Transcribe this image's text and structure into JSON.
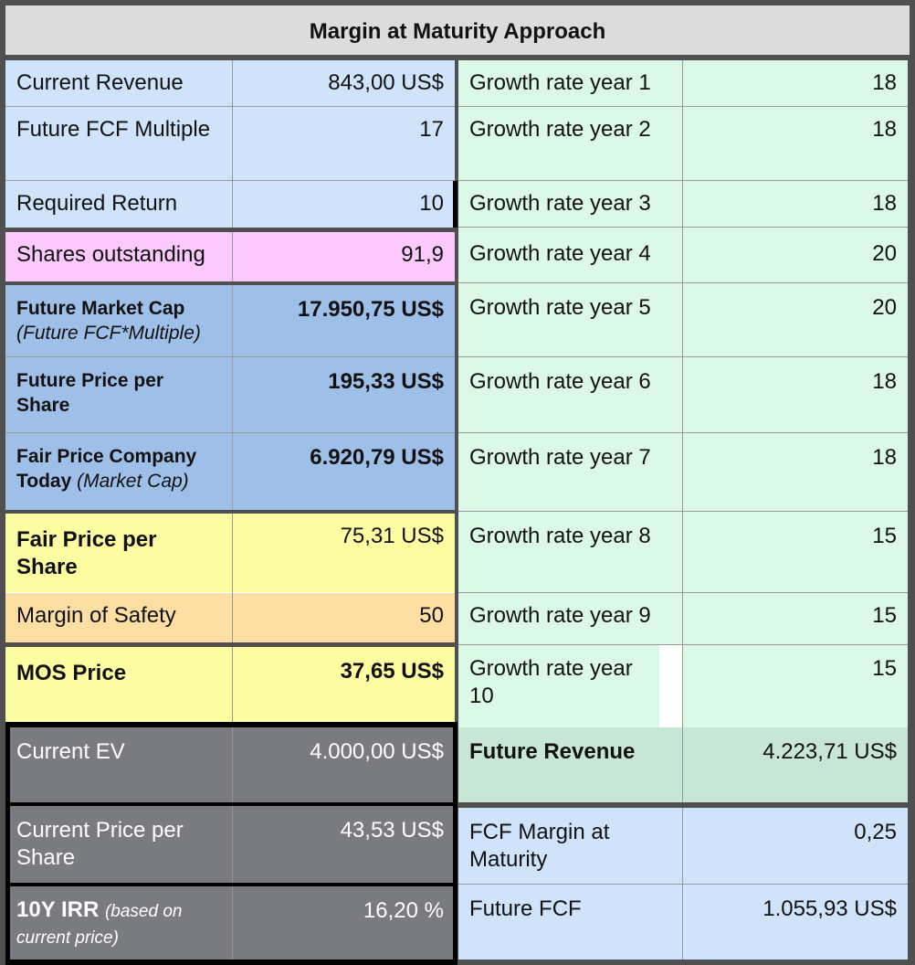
{
  "title": "Margin at Maturity Approach",
  "left": [
    {
      "label": "Current Revenue",
      "value": "843,00 US$"
    },
    {
      "label": "Future FCF Multiple",
      "value": "17"
    },
    {
      "label": "Required Return",
      "value": "10"
    },
    {
      "label": "Shares outstanding",
      "value": "91,9"
    },
    {
      "label": "Future Market Cap",
      "note": "(Future FCF*Multiple)",
      "value": "17.950,75 US$"
    },
    {
      "label": "Future Price per Share",
      "value": "195,33 US$"
    },
    {
      "label": "Fair Price Company Today",
      "note": "(Market Cap)",
      "value": "6.920,79 US$"
    },
    {
      "label": "Fair Price per Share",
      "value": "75,31 US$"
    },
    {
      "label": "Margin of Safety",
      "value": "50"
    },
    {
      "label": "MOS Price",
      "value": "37,65 US$"
    },
    {
      "label": "Current EV",
      "value": "4.000,00 US$"
    },
    {
      "label": "Current Price per Share",
      "value": "43,53 US$"
    },
    {
      "label": "10Y IRR",
      "note": "(based on current price)",
      "value": "16,20 %"
    }
  ],
  "right": [
    {
      "label": "Growth rate year 1",
      "value": "18"
    },
    {
      "label": "Growth rate year 2",
      "value": "18"
    },
    {
      "label": "Growth rate year 3",
      "value": "18"
    },
    {
      "label": "Growth rate year 4",
      "value": "20"
    },
    {
      "label": "Growth rate year 5",
      "value": "20"
    },
    {
      "label": "Growth rate year 6",
      "value": "18"
    },
    {
      "label": "Growth rate year 7",
      "value": "18"
    },
    {
      "label": "Growth rate year 8",
      "value": "15"
    },
    {
      "label": "Growth rate year 9",
      "value": "15"
    },
    {
      "label": "Growth rate year 10",
      "value": "15"
    },
    {
      "label": "Future Revenue",
      "value": "4.223,71 US$"
    },
    {
      "label": "FCF Margin at Maturity",
      "value": "0,25"
    },
    {
      "label": "Future FCF",
      "value": "1.055,93 US$"
    }
  ],
  "colors": {
    "header": "#dcdcdc",
    "input_blue": "#cfe3fb",
    "growth_green": "#dcf8e6",
    "shares_pink": "#fbc9fb",
    "calc_blue": "#9ebfe8",
    "fair_yellow": "#fdfda2",
    "mos_orange": "#fddfa4",
    "current_gray": "#7a7b80",
    "future_revenue_green": "#c7e6d6"
  }
}
